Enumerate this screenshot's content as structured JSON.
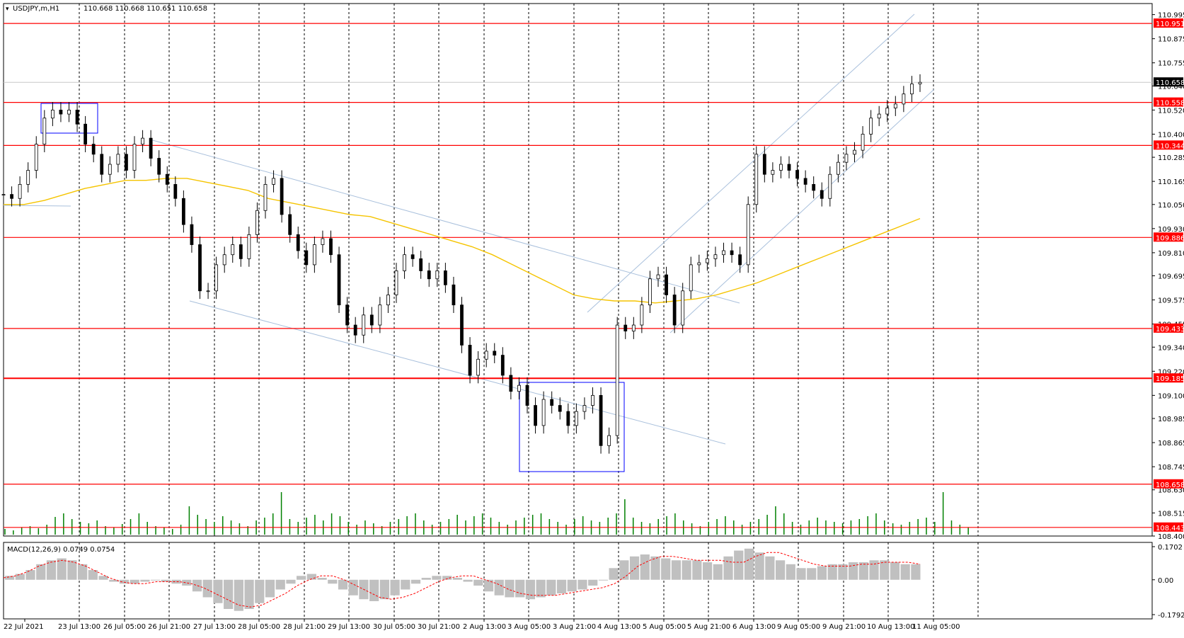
{
  "chart_data": [
    {
      "type": "candlestick",
      "symbol_header": "USDJPY,m,H1",
      "ohlc_readout": "110.668 110.668 110.651 110.658",
      "last_price": 110.658,
      "y_ticks": [
        110.995,
        110.875,
        110.755,
        110.64,
        110.52,
        110.4,
        110.285,
        110.165,
        110.05,
        109.93,
        109.81,
        109.695,
        109.575,
        109.455,
        109.34,
        109.22,
        109.1,
        108.985,
        108.865,
        108.745,
        108.63,
        108.515,
        108.4
      ],
      "ylim": [
        108.4,
        111.05
      ],
      "x_ticks": [
        "22 Jul 2021",
        "23 Jul 13:00",
        "26 Jul 05:00",
        "26 Jul 21:00",
        "27 Jul 13:00",
        "28 Jul 05:00",
        "28 Jul 21:00",
        "29 Jul 13:00",
        "30 Jul 05:00",
        "30 Jul 21:00",
        "2 Aug 13:00",
        "3 Aug 05:00",
        "3 Aug 21:00",
        "4 Aug 13:00",
        "5 Aug 05:00",
        "5 Aug 21:00",
        "6 Aug 13:00",
        "9 Aug 05:00",
        "9 Aug 21:00",
        "10 Aug 13:00",
        "11 Aug 05:00"
      ],
      "horizontal_levels": [
        110.951,
        110.558,
        110.344,
        109.886,
        109.433,
        109.185,
        108.658,
        108.443
      ],
      "close_path": [
        110.1,
        110.08,
        110.15,
        110.22,
        110.35,
        110.48,
        110.52,
        110.5,
        110.52,
        110.45,
        110.35,
        110.3,
        110.2,
        110.25,
        110.3,
        110.22,
        110.35,
        110.38,
        110.28,
        110.2,
        110.15,
        110.08,
        109.95,
        109.85,
        109.62,
        109.62,
        109.75,
        109.8,
        109.85,
        109.78,
        109.9,
        110.02,
        110.15,
        110.18,
        110.0,
        109.9,
        109.82,
        109.75,
        109.85,
        109.88,
        109.8,
        109.55,
        109.45,
        109.4,
        109.5,
        109.45,
        109.55,
        109.6,
        109.72,
        109.8,
        109.78,
        109.72,
        109.68,
        109.72,
        109.65,
        109.55,
        109.35,
        109.2,
        109.28,
        109.32,
        109.3,
        109.2,
        109.12,
        109.15,
        109.05,
        108.95,
        109.08,
        109.05,
        109.02,
        108.95,
        109.02,
        109.05,
        109.1,
        108.85,
        108.9,
        109.45,
        109.42,
        109.45,
        109.55,
        109.68,
        109.7,
        109.6,
        109.45,
        109.62,
        109.75,
        109.76,
        109.78,
        109.8,
        109.82,
        109.8,
        109.75,
        110.05,
        110.3,
        110.2,
        110.22,
        110.25,
        110.22,
        110.18,
        110.15,
        110.12,
        110.08,
        110.2,
        110.26,
        110.3,
        110.32,
        110.4,
        110.48,
        110.5,
        110.53,
        110.55,
        110.6,
        110.65,
        110.658
      ],
      "ma_path": [
        110.05,
        110.05,
        110.07,
        110.1,
        110.13,
        110.15,
        110.17,
        110.17,
        110.18,
        110.18,
        110.16,
        110.14,
        110.12,
        110.08,
        110.06,
        110.04,
        110.02,
        110.0,
        109.99,
        109.96,
        109.93,
        109.9,
        109.87,
        109.84,
        109.8,
        109.75,
        109.7,
        109.65,
        109.6,
        109.58,
        109.57,
        109.57,
        109.56,
        109.57,
        109.58,
        109.6,
        109.63,
        109.66,
        109.7,
        109.74,
        109.78,
        109.82,
        109.86,
        109.9,
        109.94,
        109.98
      ],
      "volume_heights": [
        8,
        6,
        10,
        12,
        9,
        14,
        25,
        30,
        22,
        18,
        16,
        20,
        12,
        10,
        15,
        22,
        30,
        18,
        12,
        10,
        8,
        14,
        40,
        28,
        22,
        18,
        26,
        20,
        16,
        12,
        20,
        24,
        30,
        60,
        22,
        18,
        24,
        28,
        20,
        30,
        26,
        18,
        14,
        20,
        16,
        12,
        18,
        22,
        26,
        30,
        20,
        14,
        18,
        22,
        28,
        20,
        26,
        30,
        24,
        18,
        14,
        20,
        24,
        28,
        30,
        22,
        18,
        14,
        22,
        26,
        20,
        18,
        24,
        30,
        50,
        24,
        18,
        16,
        22,
        26,
        30,
        20,
        16,
        12,
        18,
        22,
        26,
        20,
        14,
        18,
        22,
        28,
        40,
        30,
        18,
        14,
        20,
        24,
        20,
        18,
        16,
        20,
        22,
        26,
        30,
        20,
        16,
        14,
        18,
        22,
        24,
        18,
        60,
        20,
        14,
        10
      ],
      "volume_color": "#008000",
      "line_color": "#ff0000",
      "ma_color": "#f5c400"
    },
    {
      "type": "bar",
      "title": "MACD(12,26,9) 0.0749 0.0754",
      "y_ticks": [
        0.1702,
        0.0,
        -0.1792
      ],
      "ylim": [
        -0.1792,
        0.1702
      ],
      "histogram": [
        0.02,
        0.03,
        0.05,
        0.08,
        0.1,
        0.11,
        0.1,
        0.08,
        0.05,
        0.02,
        -0.01,
        -0.02,
        -0.02,
        -0.01,
        0.0,
        -0.01,
        -0.02,
        -0.03,
        -0.06,
        -0.09,
        -0.12,
        -0.15,
        -0.16,
        -0.15,
        -0.12,
        -0.09,
        -0.05,
        -0.02,
        0.02,
        0.03,
        0.01,
        -0.02,
        -0.05,
        -0.08,
        -0.1,
        -0.11,
        -0.1,
        -0.08,
        -0.05,
        -0.02,
        0.01,
        0.02,
        0.02,
        0.01,
        -0.01,
        -0.03,
        -0.06,
        -0.08,
        -0.09,
        -0.09,
        -0.1,
        -0.09,
        -0.08,
        -0.07,
        -0.06,
        -0.05,
        -0.03,
        0.0,
        0.06,
        0.1,
        0.12,
        0.13,
        0.12,
        0.11,
        0.1,
        0.1,
        0.1,
        0.09,
        0.08,
        0.12,
        0.15,
        0.16,
        0.14,
        0.12,
        0.1,
        0.08,
        0.06,
        0.06,
        0.07,
        0.08,
        0.08,
        0.09,
        0.09,
        0.1,
        0.1,
        0.09,
        0.08,
        0.08
      ],
      "signal": [
        0.01,
        0.02,
        0.04,
        0.07,
        0.09,
        0.1,
        0.09,
        0.07,
        0.04,
        0.01,
        -0.01,
        -0.02,
        -0.02,
        -0.01,
        -0.01,
        -0.01,
        -0.02,
        -0.04,
        -0.07,
        -0.1,
        -0.13,
        -0.14,
        -0.13,
        -0.1,
        -0.07,
        -0.03,
        0.0,
        0.02,
        0.02,
        0.0,
        -0.03,
        -0.06,
        -0.09,
        -0.1,
        -0.09,
        -0.07,
        -0.04,
        -0.01,
        0.01,
        0.02,
        0.02,
        0.0,
        -0.02,
        -0.05,
        -0.07,
        -0.08,
        -0.08,
        -0.08,
        -0.07,
        -0.06,
        -0.05,
        -0.04,
        -0.02,
        0.02,
        0.07,
        0.1,
        0.12,
        0.12,
        0.11,
        0.1,
        0.1,
        0.1,
        0.09,
        0.09,
        0.12,
        0.14,
        0.14,
        0.12,
        0.1,
        0.08,
        0.07,
        0.07,
        0.07,
        0.08,
        0.08,
        0.09,
        0.09,
        0.09,
        0.08
      ],
      "histogram_color": "#c0c0c0",
      "signal_color": "#ff0000"
    }
  ]
}
